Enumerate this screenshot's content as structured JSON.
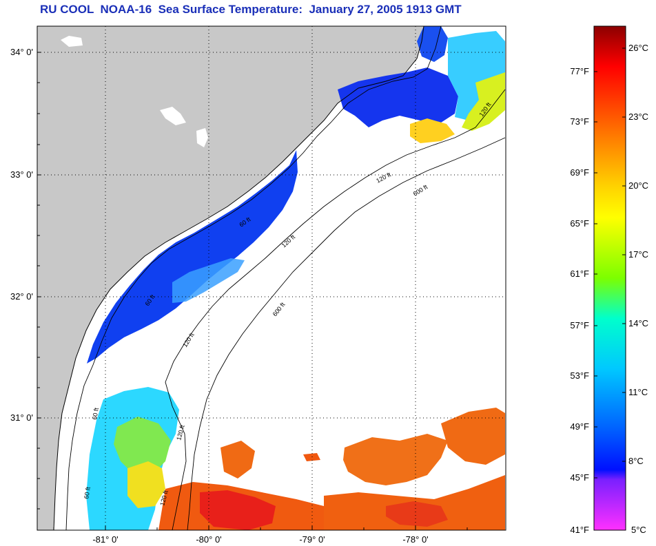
{
  "title": "RU COOL  NOAA-16  Sea Surface Temperature:  January 27, 2005 1913 GMT",
  "map": {
    "lon_labels": [
      "-81° 0'",
      "-80° 0'",
      "-79° 0'",
      "-78° 0'"
    ],
    "lat_labels": [
      "34° 0'",
      "33° 0'",
      "32° 0'",
      "31° 0'"
    ],
    "contour_labels": [
      "120 ft",
      "600 ft",
      "120 ft",
      "600 ft",
      "120 ft",
      "60 ft",
      "60 ft",
      "120 ft",
      "60 ft",
      "120 ft",
      "60 ft",
      "120 ft"
    ],
    "colors": {
      "land": "#c8c8c8",
      "no_data": "#ffffff"
    }
  },
  "colorbar": {
    "fahrenheit_labels": [
      "77°F",
      "73°F",
      "69°F",
      "65°F",
      "61°F",
      "57°F",
      "53°F",
      "49°F",
      "45°F",
      "41°F"
    ],
    "celsius_labels": [
      "26°C",
      "23°C",
      "20°C",
      "17°C",
      "14°C",
      "11°C",
      "8°C",
      "5°C"
    ],
    "range_celsius": [
      5,
      27.5
    ],
    "colors": [
      "#8b0000",
      "#ff0000",
      "#ff6a00",
      "#ffd400",
      "#ffff00",
      "#7cff00",
      "#00ffcc",
      "#00c8ff",
      "#0060ff",
      "#0010ff",
      "#7a20ff",
      "#ff30ff"
    ]
  }
}
